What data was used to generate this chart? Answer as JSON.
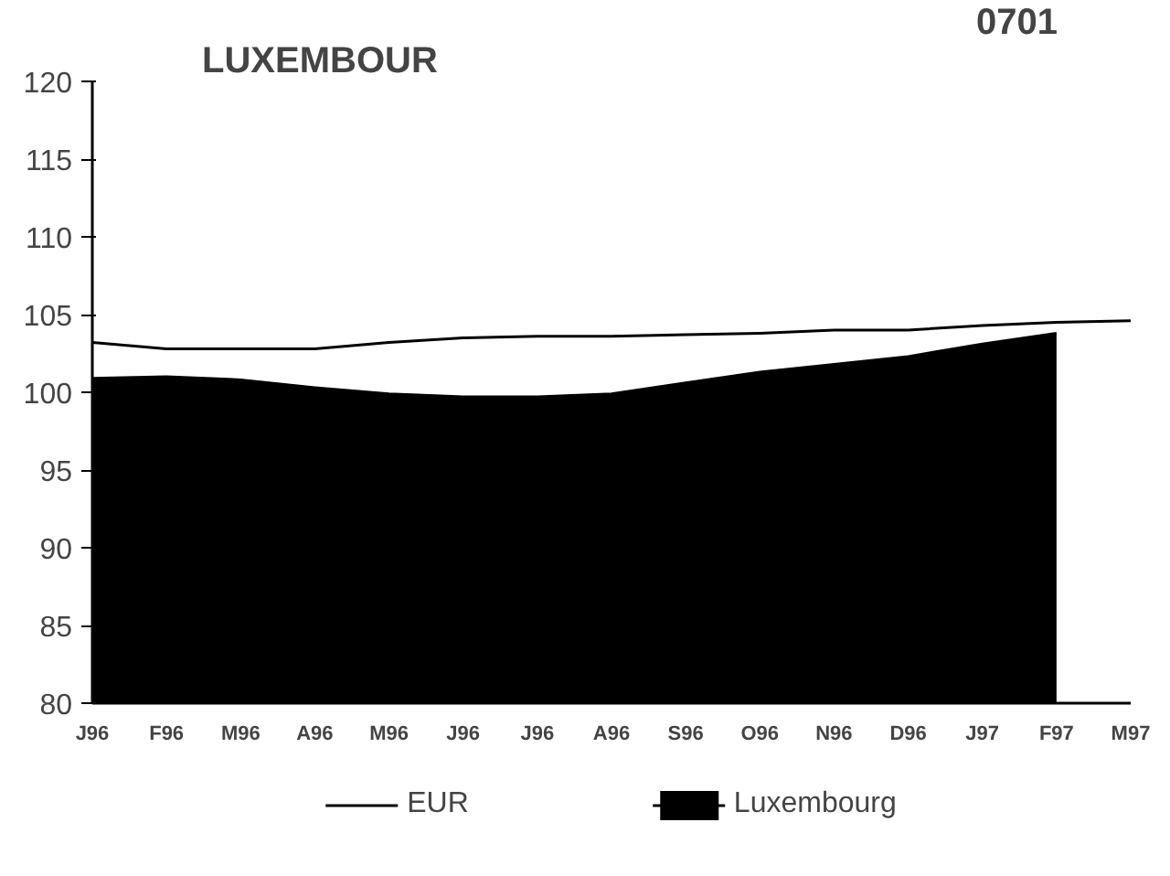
{
  "chart_data": {
    "type": "area",
    "title": "LUXEMBOUR",
    "annotations": [
      "0701"
    ],
    "categories": [
      "J96",
      "F96",
      "M96",
      "A96",
      "M96",
      "J96",
      "J96",
      "A96",
      "S96",
      "O96",
      "N96",
      "D96",
      "J97",
      "F97",
      "M97"
    ],
    "series": [
      {
        "name": "EUR",
        "color": "#ffffff",
        "values": [
          103.2,
          102.8,
          102.8,
          102.8,
          103.2,
          103.5,
          103.6,
          103.6,
          103.7,
          103.8,
          104.0,
          104.0,
          104.3,
          104.5,
          104.6
        ]
      },
      {
        "name": "Luxembourg",
        "color": "#000000",
        "values": [
          100.9,
          101.0,
          100.8,
          100.3,
          99.9,
          99.7,
          99.7,
          99.9,
          100.6,
          101.3,
          101.8,
          102.3,
          103.1,
          103.8,
          null
        ]
      }
    ],
    "ylim": [
      80,
      120
    ],
    "yticks": [
      80,
      85,
      90,
      95,
      100,
      105,
      110,
      115,
      120
    ],
    "grid": false,
    "legend": "bottom"
  }
}
